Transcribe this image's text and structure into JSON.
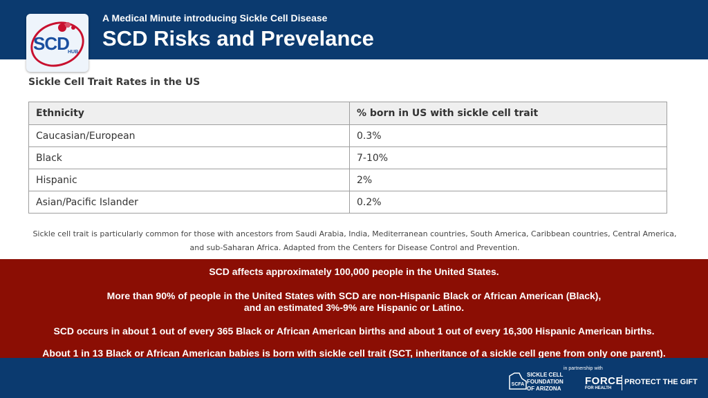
{
  "header": {
    "subtitle": "A Medical Minute introducing Sickle Cell Disease",
    "title": "SCD Risks and Prevelance",
    "logo_text": "SCD",
    "logo_subtext": "HUB"
  },
  "table": {
    "heading": "Sickle Cell Trait Rates in the US",
    "columns": [
      "Ethnicity",
      "% born in US with sickle cell trait"
    ],
    "rows": [
      [
        "Caucasian/European",
        "0.3%"
      ],
      [
        "Black",
        "7-10%"
      ],
      [
        "Hispanic",
        "2%"
      ],
      [
        "Asian/Pacific Islander",
        "0.2%"
      ]
    ],
    "footnote": "Sickle cell trait is particularly common for those with ancestors from Saudi Arabia, India, Mediterranean countries, South America, Caribbean countries, Central America, and sub-Saharan Africa. Adapted from the Centers for Disease Control and Prevention."
  },
  "facts": {
    "fact1": "SCD affects approximately 100,000 people in the United States.",
    "fact2_line1": "More than 90% of people in the United States with SCD are non-Hispanic Black or African American (Black),",
    "fact2_line2": "and an estimated 3%-9% are Hispanic or Latino.",
    "fact3": "SCD occurs in about 1 out of every 365 Black or African American births and about 1 out of every 16,300 Hispanic American births.",
    "fact4": "About 1 in 13 Black or African American babies is born with sickle cell trait (SCT, inheritance of a sickle cell gene from only one parent)."
  },
  "footer": {
    "scfa_abbr": "SCFA",
    "scfa_line1": "SICKLE CELL",
    "scfa_line2": "FOUNDATION",
    "scfa_line3": "OF ARIZONA",
    "partner_text": "in partnership with",
    "force_text": "FORCE",
    "force_subtext": "FOR HEALTH",
    "protect_text": "PROTECT THE GIFT"
  },
  "colors": {
    "header_blue": "#0b3a6f",
    "facts_red": "#8b0e04",
    "table_header_bg": "#efefef",
    "logo_red": "#c8102e"
  }
}
